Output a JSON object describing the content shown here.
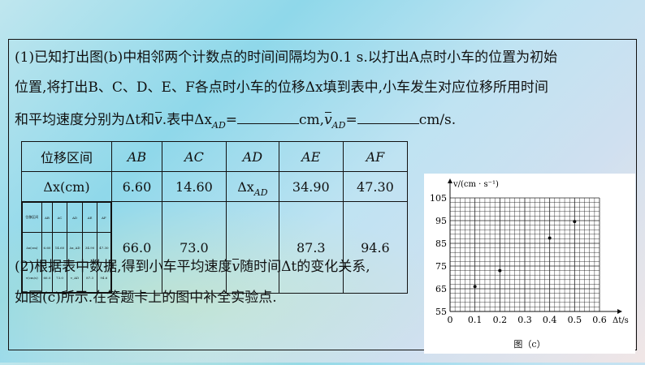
{
  "question1": {
    "line1": "(1)已知打出图(b)中相邻两个计数点的时间间隔均为0.1 s.以打出A点时小车的位置为初始",
    "line2": "位置,将打出B、C、D、E、F各点时小车的位移Δx填到表中,小车发生对应位移所用时间",
    "line3_a": "和平均速度分别为Δt和",
    "line3_b": ".表中Δx",
    "line3_c": "=",
    "line3_d": "cm,",
    "line3_e": "=",
    "line3_f": "cm/s.",
    "sub_ad": "AD",
    "vbar": "v"
  },
  "table": {
    "header_label": "位移区间",
    "columns": [
      "AB",
      "AC",
      "AD",
      "AE",
      "AF"
    ],
    "row1_label": "Δx(cm)",
    "row1": [
      "6.60",
      "14.60",
      "Δx",
      "34.90",
      "47.30"
    ],
    "row1_ad_sub": "AD",
    "row2": [
      "66.0",
      "73.0",
      "",
      "87.3",
      "94.6"
    ],
    "thumb": {
      "header": [
        "位移区间",
        "AB",
        "AC",
        "AD",
        "AE",
        "AF"
      ],
      "r1": [
        "Δx(cm)",
        "6.60",
        "14.60",
        "Δx_AD",
        "34.90",
        "47.30"
      ],
      "r2": [
        "v(cm/s)",
        "66.0",
        "73.0",
        "v_AD",
        "87.3",
        "94.6"
      ]
    }
  },
  "question2": {
    "line1_a": "(2)根据表中数据,得到小车平均速度",
    "line1_b": "随时间Δt的变化关系,",
    "line2": "如图(c)所示.在答题卡上的图中补全实验点.",
    "vbar": "v"
  },
  "chart_data": {
    "type": "scatter",
    "ylabel": "v/(cm · s⁻¹)",
    "xlabel": "Δt/s",
    "caption": "图（c）",
    "xlim": [
      0,
      0.6
    ],
    "ylim": [
      55,
      105
    ],
    "xticks": [
      "0",
      "0.1",
      "0.2",
      "0.3",
      "0.4",
      "0.5",
      "0.6"
    ],
    "yticks": [
      "55",
      "65",
      "75",
      "85",
      "95",
      "105"
    ],
    "grid": true,
    "points": [
      {
        "x": 0.1,
        "y": 66.0
      },
      {
        "x": 0.2,
        "y": 73.0
      },
      {
        "x": 0.4,
        "y": 87.3
      },
      {
        "x": 0.5,
        "y": 94.6
      }
    ]
  }
}
